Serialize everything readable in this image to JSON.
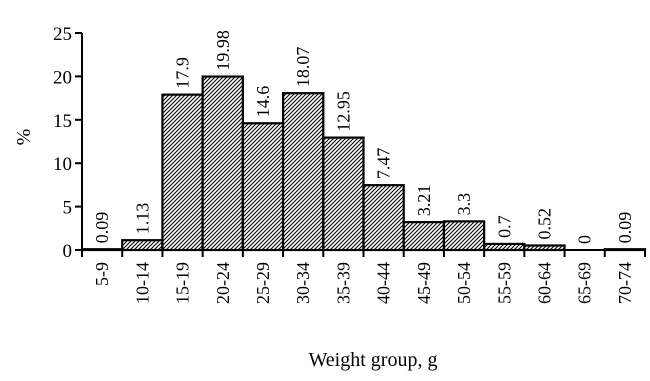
{
  "chart_data": {
    "type": "bar",
    "title": "",
    "xlabel": "Weight group, g",
    "ylabel": "%",
    "ylim": [
      0,
      25
    ],
    "yticks": [
      "0",
      "5",
      "10",
      "15",
      "20",
      "25"
    ],
    "categories": [
      "5-9",
      "10-14",
      "15-19",
      "20-24",
      "25-29",
      "30-34",
      "35-39",
      "40-44",
      "45-49",
      "50-54",
      "55-59",
      "60-64",
      "65-69",
      "70-74"
    ],
    "values": [
      0.09,
      1.13,
      17.9,
      19.98,
      14.6,
      18.07,
      12.95,
      7.47,
      3.21,
      3.3,
      0.7,
      0.52,
      0,
      0.09
    ],
    "value_labels": [
      "0.09",
      "1.13",
      "17.9",
      "19.98",
      "14.6",
      "18.07",
      "12.95",
      "7.47",
      "3.21",
      "3.3",
      "0.7",
      "0.52",
      "0",
      "0.09"
    ],
    "bar_fill": "diagonal-hatch",
    "bar_stroke": "#000000",
    "grid": false,
    "legend": "none"
  }
}
